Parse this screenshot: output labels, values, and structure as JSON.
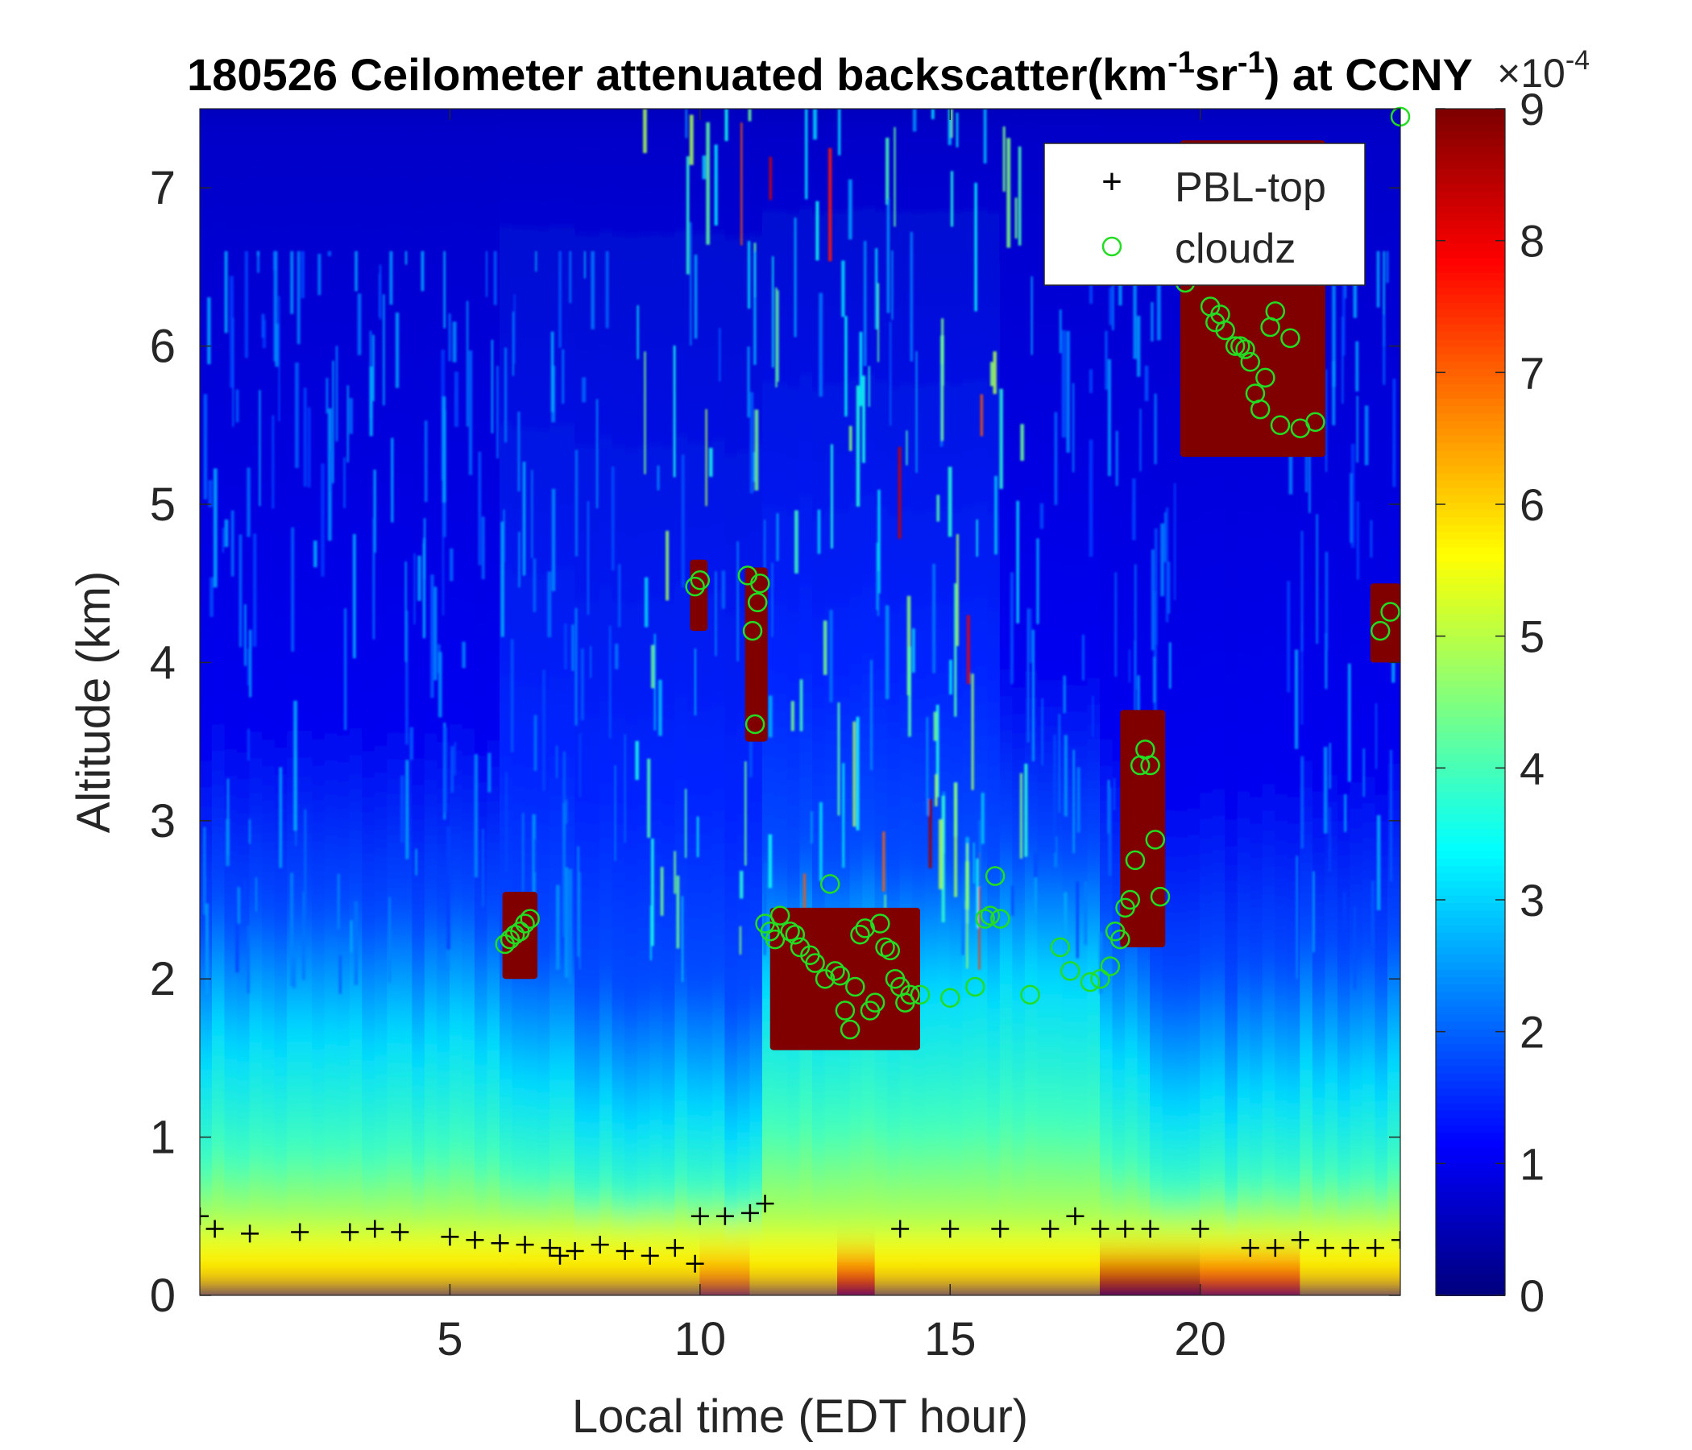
{
  "chart_data": {
    "type": "heatmap",
    "title": {
      "prefix": "180526 Ceilometer attenuated backscatter(km",
      "sup1": "-1",
      "mid": "sr",
      "sup2": "-1",
      "suffix": ") at CCNY"
    },
    "xlabel": "Local time (EDT hour)",
    "ylabel": "Altitude (km)",
    "xlim": [
      0,
      24
    ],
    "ylim": [
      0,
      7.5
    ],
    "x_ticks": [
      5,
      10,
      15,
      20
    ],
    "y_ticks": [
      0,
      1,
      2,
      3,
      4,
      5,
      6,
      7
    ],
    "colorbar": {
      "colormap": "jet",
      "range": [
        0,
        9
      ],
      "ticks": [
        0,
        1,
        2,
        3,
        4,
        5,
        6,
        7,
        8,
        9
      ],
      "exponent_base": "×10",
      "exponent": "-4"
    },
    "legend": {
      "placement": "top-right",
      "entries": [
        {
          "marker": "+",
          "label": "PBL-top",
          "color": "#000000"
        },
        {
          "marker": "o",
          "label": "cloudz",
          "color": "#22dd22"
        }
      ]
    },
    "series": [
      {
        "name": "PBL-top",
        "marker": "+",
        "x": [
          0.0,
          0.3,
          1.0,
          2.0,
          3.0,
          3.5,
          4.0,
          5.0,
          5.5,
          6.0,
          6.5,
          7.0,
          7.2,
          7.5,
          8.0,
          8.5,
          9.0,
          9.5,
          9.9,
          10.0,
          10.5,
          11.0,
          11.3,
          14.0,
          15.0,
          16.0,
          17.0,
          17.5,
          18.0,
          18.5,
          19.0,
          20.0,
          21.0,
          21.5,
          22.0,
          22.5,
          23.0,
          23.5,
          24.0
        ],
        "y": [
          0.5,
          0.42,
          0.39,
          0.4,
          0.4,
          0.42,
          0.4,
          0.37,
          0.35,
          0.33,
          0.32,
          0.3,
          0.25,
          0.28,
          0.32,
          0.28,
          0.25,
          0.3,
          0.2,
          0.5,
          0.5,
          0.52,
          0.58,
          0.42,
          0.42,
          0.42,
          0.42,
          0.5,
          0.42,
          0.42,
          0.42,
          0.42,
          0.3,
          0.3,
          0.35,
          0.3,
          0.3,
          0.3,
          0.35
        ]
      },
      {
        "name": "cloudz",
        "marker": "o",
        "x": [
          6.1,
          6.2,
          6.3,
          6.4,
          6.5,
          6.6,
          9.9,
          10.0,
          10.95,
          11.05,
          11.15,
          11.2,
          11.3,
          11.1,
          11.4,
          11.5,
          11.6,
          11.8,
          11.9,
          12.0,
          12.2,
          12.3,
          12.5,
          12.6,
          12.7,
          12.8,
          12.9,
          13.0,
          13.1,
          13.2,
          13.3,
          13.4,
          13.5,
          13.6,
          13.7,
          13.8,
          13.9,
          14.0,
          14.1,
          14.2,
          14.4,
          15.0,
          15.5,
          15.7,
          15.8,
          15.9,
          16.0,
          16.6,
          17.2,
          17.4,
          17.8,
          18.0,
          18.2,
          18.3,
          18.4,
          18.5,
          18.6,
          18.7,
          18.8,
          18.9,
          19.0,
          19.1,
          19.2,
          19.7,
          20.2,
          20.3,
          20.4,
          20.5,
          20.7,
          20.8,
          20.9,
          21.0,
          21.1,
          21.2,
          21.3,
          21.4,
          21.5,
          21.6,
          21.8,
          22.0,
          22.3,
          23.6,
          23.8,
          24.0
        ],
        "y": [
          2.22,
          2.25,
          2.28,
          2.3,
          2.35,
          2.38,
          4.48,
          4.52,
          4.55,
          4.2,
          4.38,
          4.5,
          2.35,
          3.61,
          2.3,
          2.25,
          2.4,
          2.3,
          2.28,
          2.2,
          2.15,
          2.1,
          2.0,
          2.6,
          2.05,
          2.02,
          1.8,
          1.68,
          1.95,
          2.28,
          2.32,
          1.8,
          1.85,
          2.35,
          2.2,
          2.18,
          2.0,
          1.95,
          1.85,
          1.9,
          1.9,
          1.88,
          1.95,
          2.38,
          2.4,
          2.65,
          2.38,
          1.9,
          2.2,
          2.05,
          1.98,
          2.0,
          2.08,
          2.3,
          2.25,
          2.45,
          2.5,
          2.75,
          3.35,
          3.45,
          3.35,
          2.88,
          2.52,
          6.4,
          6.25,
          6.15,
          6.2,
          6.1,
          6.0,
          6.0,
          5.98,
          5.9,
          5.7,
          5.6,
          5.8,
          6.12,
          6.22,
          5.5,
          6.05,
          5.48,
          5.52,
          4.2,
          4.32,
          7.45
        ]
      }
    ],
    "regions": [
      {
        "x0": 6.05,
        "x1": 6.75,
        "y0": 2.0,
        "y1": 2.55
      },
      {
        "x0": 9.8,
        "x1": 10.15,
        "y0": 4.2,
        "y1": 4.65
      },
      {
        "x0": 10.9,
        "x1": 11.35,
        "y0": 3.5,
        "y1": 4.6
      },
      {
        "x0": 11.4,
        "x1": 14.4,
        "y0": 1.55,
        "y1": 2.45
      },
      {
        "x0": 18.4,
        "x1": 19.3,
        "y0": 2.2,
        "y1": 3.7
      },
      {
        "x0": 19.6,
        "x1": 22.5,
        "y0": 5.3,
        "y1": 7.3
      },
      {
        "x0": 23.4,
        "x1": 24.0,
        "y0": 4.0,
        "y1": 4.5
      }
    ]
  }
}
